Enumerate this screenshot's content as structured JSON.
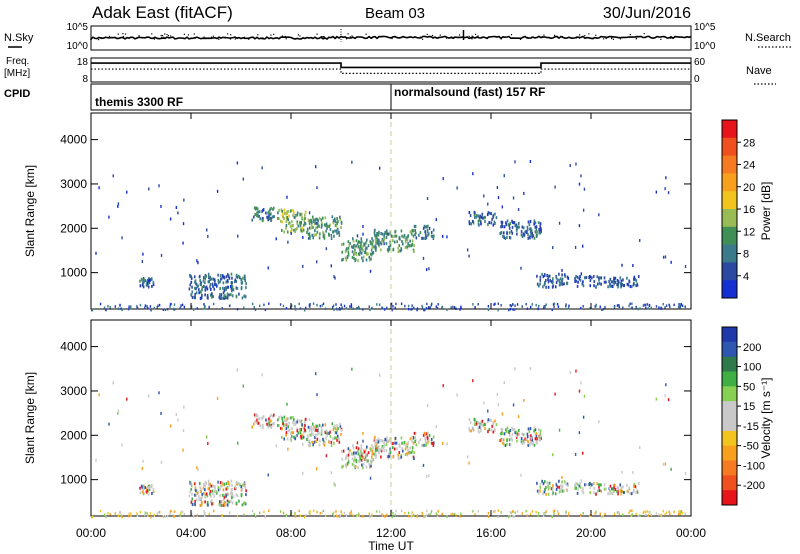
{
  "header": {
    "station": "Adak East (fitACF)",
    "beam": "Beam 03",
    "date": "30/Jun/2016"
  },
  "nsky_panel": {
    "left_label": "N.Sky",
    "left_ticks": [
      "10^5",
      "10^0"
    ],
    "right_label": "N.Search",
    "right_ticks": [
      "10^5",
      "10^0"
    ]
  },
  "freq_panel": {
    "left_label_1": "Freq.",
    "left_label_2": "[MHz]",
    "left_ticks": [
      "18",
      "8"
    ],
    "right_label": "Nave",
    "right_ticks": [
      "60",
      "0"
    ],
    "freq_steps": [
      {
        "start_h": 0,
        "end_h": 10.0,
        "freq_mhz": 10.8
      },
      {
        "start_h": 10.0,
        "end_h": 18.0,
        "freq_mhz": 9.0
      },
      {
        "start_h": 18.0,
        "end_h": 24,
        "freq_mhz": 10.8
      }
    ]
  },
  "cpid_panel": {
    "label": "CPID",
    "segments": [
      {
        "start_h": 0,
        "end_h": 12.0,
        "text": "themis 3300 RF"
      },
      {
        "start_h": 12.0,
        "end_h": 24,
        "text": "normalsound (fast) 157 RF"
      }
    ]
  },
  "x_axis": {
    "ticks": [
      "00:00",
      "04:00",
      "08:00",
      "12:00",
      "16:00",
      "20:00",
      "00:00"
    ],
    "tick_hours": [
      0,
      4,
      8,
      12,
      16,
      20,
      24
    ],
    "label": "Time UT"
  },
  "power_panel": {
    "ylabel": "Slant Range [km]",
    "yticks": [
      "4000",
      "3000",
      "2000",
      "1000"
    ],
    "colorbar_label": "Power [dB]",
    "colorbar_ticks": [
      "28",
      "24",
      "20",
      "16",
      "12",
      "8",
      "4"
    ],
    "colorbar_colors": [
      "#e8141c",
      "#f0501e",
      "#f57a21",
      "#f7a01e",
      "#f2c41e",
      "#99bb55",
      "#3f8f57",
      "#3a7a8a",
      "#2b49a0",
      "#1430d2"
    ]
  },
  "velocity_panel": {
    "ylabel": "Slant Range [km]",
    "yticks": [
      "4000",
      "3000",
      "2000",
      "1000"
    ],
    "colorbar_label": "Velocity [m s⁻¹]",
    "colorbar_ticks": [
      "200",
      "100",
      "50",
      "15",
      "-15",
      "-50",
      "-100",
      "-200"
    ],
    "colorbar_colors": [
      "#1f3aa8",
      "#2d57b0",
      "#2f7a4a",
      "#3fae43",
      "#86d052",
      "#c9c9c9",
      "#c9c9c9",
      "#f2c41e",
      "#f7a01e",
      "#f57a21",
      "#f0501e",
      "#e8141c"
    ]
  },
  "chart_data": {
    "type": "heatmap",
    "x_unit": "hours UT",
    "y_unit": "km",
    "xlim": [
      0,
      24
    ],
    "ylim": [
      180,
      4600
    ],
    "power_regions": [
      {
        "t0": 1.9,
        "t1": 2.5,
        "r0": 700,
        "r1": 900,
        "dB": 6
      },
      {
        "t0": 3.9,
        "t1": 6.2,
        "r0": 450,
        "r1": 1000,
        "dB": 6
      },
      {
        "t0": 6.4,
        "t1": 7.4,
        "r0": 2200,
        "r1": 2500,
        "dB": 8
      },
      {
        "t0": 7.4,
        "t1": 8.6,
        "r0": 1950,
        "r1": 2450,
        "dB": 12
      },
      {
        "t0": 8.6,
        "t1": 10.0,
        "r0": 1800,
        "r1": 2300,
        "dB": 10
      },
      {
        "t0": 10.0,
        "t1": 11.3,
        "r0": 1300,
        "r1": 1800,
        "dB": 10
      },
      {
        "t0": 11.3,
        "t1": 12.9,
        "r0": 1500,
        "r1": 2000,
        "dB": 10
      },
      {
        "t0": 12.9,
        "t1": 13.7,
        "r0": 1800,
        "r1": 2100,
        "dB": 8
      },
      {
        "t0": 15.1,
        "t1": 16.2,
        "r0": 2100,
        "r1": 2400,
        "dB": 6
      },
      {
        "t0": 16.3,
        "t1": 18.0,
        "r0": 1800,
        "r1": 2200,
        "dB": 6
      },
      {
        "t0": 17.8,
        "t1": 19.1,
        "r0": 700,
        "r1": 1000,
        "dB": 5
      },
      {
        "t0": 19.3,
        "t1": 21.9,
        "r0": 700,
        "r1": 950,
        "dB": 5
      }
    ]
  }
}
